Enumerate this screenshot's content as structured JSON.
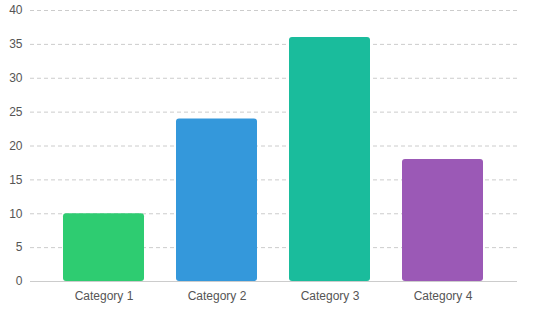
{
  "chart_data": {
    "type": "bar",
    "categories": [
      "Category 1",
      "Category 2",
      "Category 3",
      "Category 4"
    ],
    "values": [
      10,
      24,
      36,
      18
    ],
    "colors": [
      "#2ecc71",
      "#3498db",
      "#1abc9c",
      "#9b59b6"
    ],
    "ylim": [
      0,
      40
    ],
    "yticks": [
      0,
      5,
      10,
      15,
      20,
      25,
      30,
      35,
      40
    ],
    "grid": true
  }
}
